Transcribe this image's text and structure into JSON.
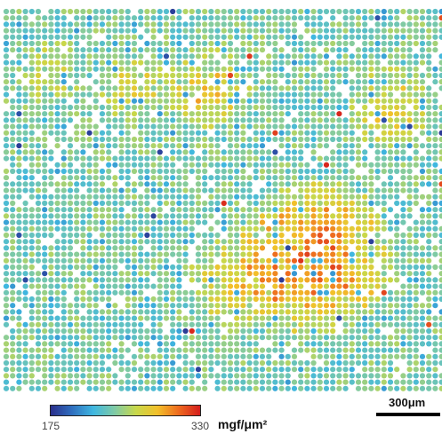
{
  "colorbar": {
    "min_label": "175",
    "max_label": "330",
    "unit_label": "mgf/μm²",
    "min_value": 175,
    "max_value": 330,
    "colors": [
      "#2a2f8c",
      "#2f6fbf",
      "#3fb7e0",
      "#7fcaa5",
      "#c8d84a",
      "#f2c02a",
      "#ee6a1e",
      "#d41d1d"
    ]
  },
  "scale_bar": {
    "label": "300μm"
  },
  "map": {
    "type": "dot-grid heatmap",
    "colors": {
      "background": "#ffffff",
      "dominant": "#7fcaa5"
    }
  }
}
